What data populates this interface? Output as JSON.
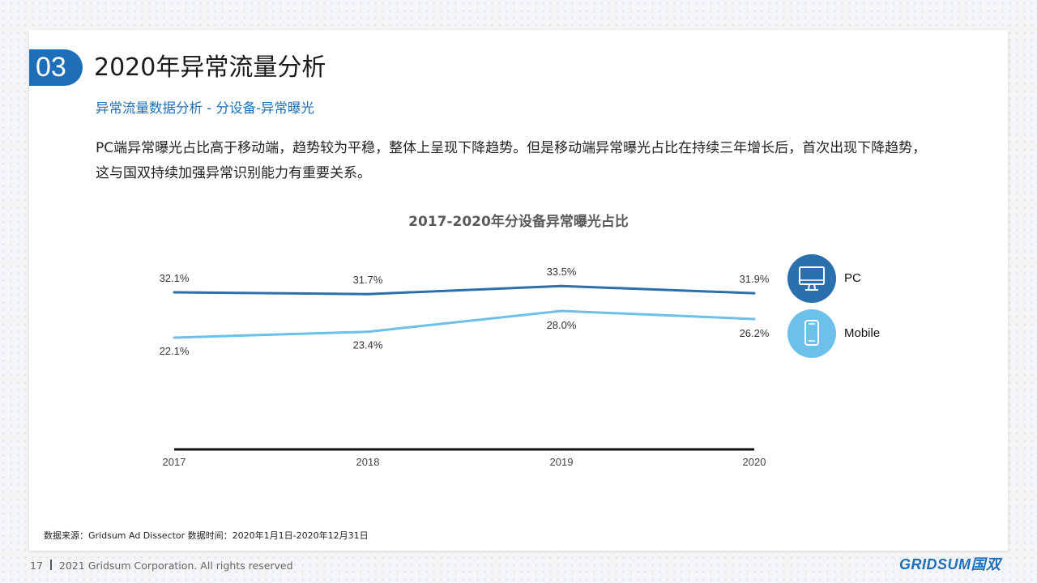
{
  "header": {
    "section_number": "03",
    "title": "2020年异常流量分析",
    "subtitle": "异常流量数据分析 - 分设备-异常曝光",
    "description": "PC端异常曝光占比高于移动端，趋势较为平稳，整体上呈现下降趋势。但是移动端异常曝光占比在持续三年增长后，首次出现下降趋势，这与国双持续加强异常识别能力有重要关系。"
  },
  "chart_data": {
    "type": "line",
    "title": "2017-2020年分设备异常曝光占比",
    "x": [
      "2017",
      "2018",
      "2019",
      "2020"
    ],
    "series": [
      {
        "name": "PC",
        "values": [
          32.1,
          31.7,
          33.5,
          31.9
        ],
        "labels": [
          "32.1%",
          "31.7%",
          "33.5%",
          "31.9%"
        ],
        "color": "#2a6fae",
        "icon": "monitor-icon"
      },
      {
        "name": "Mobile",
        "values": [
          22.1,
          23.4,
          28.0,
          26.2
        ],
        "labels": [
          "22.1%",
          "23.4%",
          "28.0%",
          "26.2%"
        ],
        "color": "#6cc0ea",
        "icon": "mobile-phone-icon"
      }
    ],
    "unit": "%",
    "ylim": [
      0,
      40
    ],
    "grid": false,
    "legend": "right"
  },
  "source": "数据来源：Gridsum Ad Dissector 数据时间：2020年1月1日-2020年12月31日",
  "footer": {
    "page_number": "17",
    "copyright": "2021 Gridsum Corporation. All rights reserved",
    "logo": "GRIDSUM国双"
  },
  "colors": {
    "accent": "#1e6fb8",
    "pc": "#2a6fae",
    "mobile": "#6cc0ea"
  }
}
